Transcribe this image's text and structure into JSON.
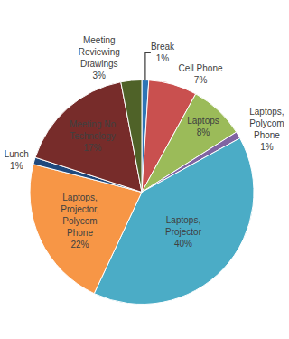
{
  "chart_data": {
    "type": "pie",
    "categories": [
      "Break",
      "Cell Phone",
      "Laptops",
      "Laptops, Polycom Phone",
      "Laptops, Projector",
      "Laptops, Projector, Polycom Phone",
      "Lunch",
      "Meeting No Technology",
      "Meeting Reviewing Drawings"
    ],
    "values": [
      1,
      7,
      8,
      1,
      40,
      22,
      1,
      17,
      3
    ],
    "value_labels": [
      "1%",
      "7%",
      "8%",
      "1%",
      "40%",
      "22%",
      "1%",
      "17%",
      "3%"
    ],
    "colors": [
      "#2e75b6",
      "#c9504f",
      "#9bbb59",
      "#8064a2",
      "#4bacc6",
      "#f79646",
      "#1f497d",
      "#772c2a",
      "#4f6228"
    ],
    "data_labels": true
  }
}
